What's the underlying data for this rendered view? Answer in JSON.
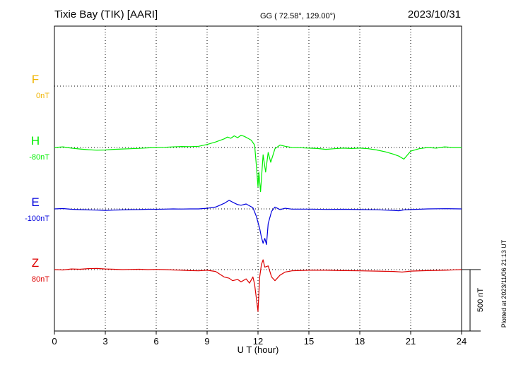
{
  "header": {
    "station": "Tixie Bay (TIK)  [AARI]",
    "coords": "GG ( 72.58°, 129.00°)",
    "date": "2023/10/31"
  },
  "footer": {
    "plotted_at": "Plotted at 2023/11/06 21:13 UT"
  },
  "chart_data": {
    "type": "line",
    "title": "Tixie Bay (TIK)  [AARI]",
    "xlabel": "U T (hour)",
    "xlim": [
      0,
      24
    ],
    "x_ticks": [
      0,
      3,
      6,
      9,
      12,
      15,
      18,
      21,
      24
    ],
    "x_tick_labels": [
      "0",
      "3",
      "6",
      "9",
      "12",
      "15",
      "18",
      "21",
      "24"
    ],
    "grid": true,
    "scale_bar": {
      "value": 500,
      "label": "500 nT"
    },
    "series": [
      {
        "name": "F",
        "offset_label": "0nT",
        "color": "#f0b400",
        "points": []
      },
      {
        "name": "H",
        "offset_label": "-80nT",
        "color": "#00ee00",
        "points": [
          [
            0,
            0
          ],
          [
            0.5,
            5
          ],
          [
            1,
            -5
          ],
          [
            1.5,
            -12
          ],
          [
            2,
            -18
          ],
          [
            2.5,
            -22
          ],
          [
            3,
            -20
          ],
          [
            3.5,
            -15
          ],
          [
            4,
            -12
          ],
          [
            4.5,
            -10
          ],
          [
            5,
            -7
          ],
          [
            5.5,
            -3
          ],
          [
            6,
            0
          ],
          [
            6.5,
            2
          ],
          [
            7,
            5
          ],
          [
            7.5,
            8
          ],
          [
            8,
            7
          ],
          [
            8.5,
            10
          ],
          [
            9,
            25
          ],
          [
            9.5,
            45
          ],
          [
            10,
            70
          ],
          [
            10.2,
            85
          ],
          [
            10.4,
            75
          ],
          [
            10.6,
            95
          ],
          [
            10.8,
            80
          ],
          [
            11,
            100
          ],
          [
            11.2,
            90
          ],
          [
            11.4,
            75
          ],
          [
            11.6,
            60
          ],
          [
            11.8,
            20
          ],
          [
            11.9,
            -140
          ],
          [
            12,
            -320
          ],
          [
            12.05,
            -200
          ],
          [
            12.15,
            -360
          ],
          [
            12.3,
            -60
          ],
          [
            12.45,
            -200
          ],
          [
            12.6,
            -40
          ],
          [
            12.75,
            -120
          ],
          [
            13,
            -10
          ],
          [
            13.3,
            20
          ],
          [
            13.6,
            10
          ],
          [
            14,
            0
          ],
          [
            14.5,
            -2
          ],
          [
            15,
            -5
          ],
          [
            15.5,
            -8
          ],
          [
            16,
            -15
          ],
          [
            16.5,
            -10
          ],
          [
            17,
            -5
          ],
          [
            17.5,
            -8
          ],
          [
            18,
            -5
          ],
          [
            18.5,
            -10
          ],
          [
            19,
            -20
          ],
          [
            19.5,
            -35
          ],
          [
            20,
            -55
          ],
          [
            20.3,
            -70
          ],
          [
            20.6,
            -95
          ],
          [
            21,
            -30
          ],
          [
            21.5,
            -10
          ],
          [
            22,
            0
          ],
          [
            22.5,
            -5
          ],
          [
            23,
            5
          ],
          [
            23.5,
            0
          ],
          [
            24,
            0
          ]
        ]
      },
      {
        "name": "E",
        "offset_label": "-100nT",
        "color": "#0000dd",
        "points": [
          [
            0,
            0
          ],
          [
            0.5,
            3
          ],
          [
            1,
            -3
          ],
          [
            1.5,
            -6
          ],
          [
            2,
            -8
          ],
          [
            2.5,
            -10
          ],
          [
            3,
            -12
          ],
          [
            3.5,
            -10
          ],
          [
            4,
            -8
          ],
          [
            4.5,
            -6
          ],
          [
            5,
            -5
          ],
          [
            5.5,
            -3
          ],
          [
            6,
            -3
          ],
          [
            6.5,
            -2
          ],
          [
            7,
            0
          ],
          [
            7.5,
            -1
          ],
          [
            8,
            0
          ],
          [
            8.5,
            0
          ],
          [
            9,
            5
          ],
          [
            9.5,
            15
          ],
          [
            10,
            45
          ],
          [
            10.3,
            70
          ],
          [
            10.5,
            55
          ],
          [
            10.8,
            35
          ],
          [
            11,
            30
          ],
          [
            11.3,
            40
          ],
          [
            11.5,
            25
          ],
          [
            11.7,
            10
          ],
          [
            11.9,
            -60
          ],
          [
            12.1,
            -160
          ],
          [
            12.2,
            -230
          ],
          [
            12.3,
            -280
          ],
          [
            12.4,
            -240
          ],
          [
            12.5,
            -290
          ],
          [
            12.6,
            -120
          ],
          [
            12.8,
            -20
          ],
          [
            13,
            15
          ],
          [
            13.3,
            -5
          ],
          [
            13.6,
            5
          ],
          [
            14,
            -2
          ],
          [
            15,
            -2
          ],
          [
            16,
            -4
          ],
          [
            17,
            -3
          ],
          [
            18,
            -5
          ],
          [
            19,
            -7
          ],
          [
            19.5,
            -10
          ],
          [
            20,
            -12
          ],
          [
            20.3,
            -15
          ],
          [
            20.6,
            -8
          ],
          [
            21,
            -5
          ],
          [
            22,
            0
          ],
          [
            23,
            2
          ],
          [
            24,
            0
          ]
        ]
      },
      {
        "name": "Z",
        "offset_label": "80nT",
        "color": "#dd0000",
        "points": [
          [
            0,
            0
          ],
          [
            0.5,
            -3
          ],
          [
            1,
            5
          ],
          [
            1.5,
            3
          ],
          [
            2,
            8
          ],
          [
            2.5,
            10
          ],
          [
            3,
            5
          ],
          [
            3.5,
            3
          ],
          [
            4,
            0
          ],
          [
            4.5,
            2
          ],
          [
            5,
            3
          ],
          [
            5.5,
            0
          ],
          [
            6,
            2
          ],
          [
            6.5,
            0
          ],
          [
            7,
            -3
          ],
          [
            7.5,
            -5
          ],
          [
            8,
            -8
          ],
          [
            8.5,
            -10
          ],
          [
            9,
            -5
          ],
          [
            9.5,
            -15
          ],
          [
            10,
            -60
          ],
          [
            10.3,
            -70
          ],
          [
            10.5,
            -90
          ],
          [
            10.8,
            -80
          ],
          [
            11,
            -100
          ],
          [
            11.3,
            -75
          ],
          [
            11.5,
            -110
          ],
          [
            11.7,
            -60
          ],
          [
            11.8,
            -120
          ],
          [
            12,
            -340
          ],
          [
            12.1,
            -60
          ],
          [
            12.2,
            40
          ],
          [
            12.3,
            80
          ],
          [
            12.4,
            20
          ],
          [
            12.6,
            30
          ],
          [
            12.8,
            -60
          ],
          [
            13,
            -90
          ],
          [
            13.3,
            -45
          ],
          [
            13.6,
            -20
          ],
          [
            14,
            -10
          ],
          [
            15,
            -5
          ],
          [
            16,
            -5
          ],
          [
            17,
            -8
          ],
          [
            18,
            -10
          ],
          [
            19,
            -12
          ],
          [
            20,
            -15
          ],
          [
            20.5,
            -20
          ],
          [
            21,
            -12
          ],
          [
            22,
            -8
          ],
          [
            23,
            -5
          ],
          [
            24,
            0
          ]
        ]
      }
    ]
  }
}
